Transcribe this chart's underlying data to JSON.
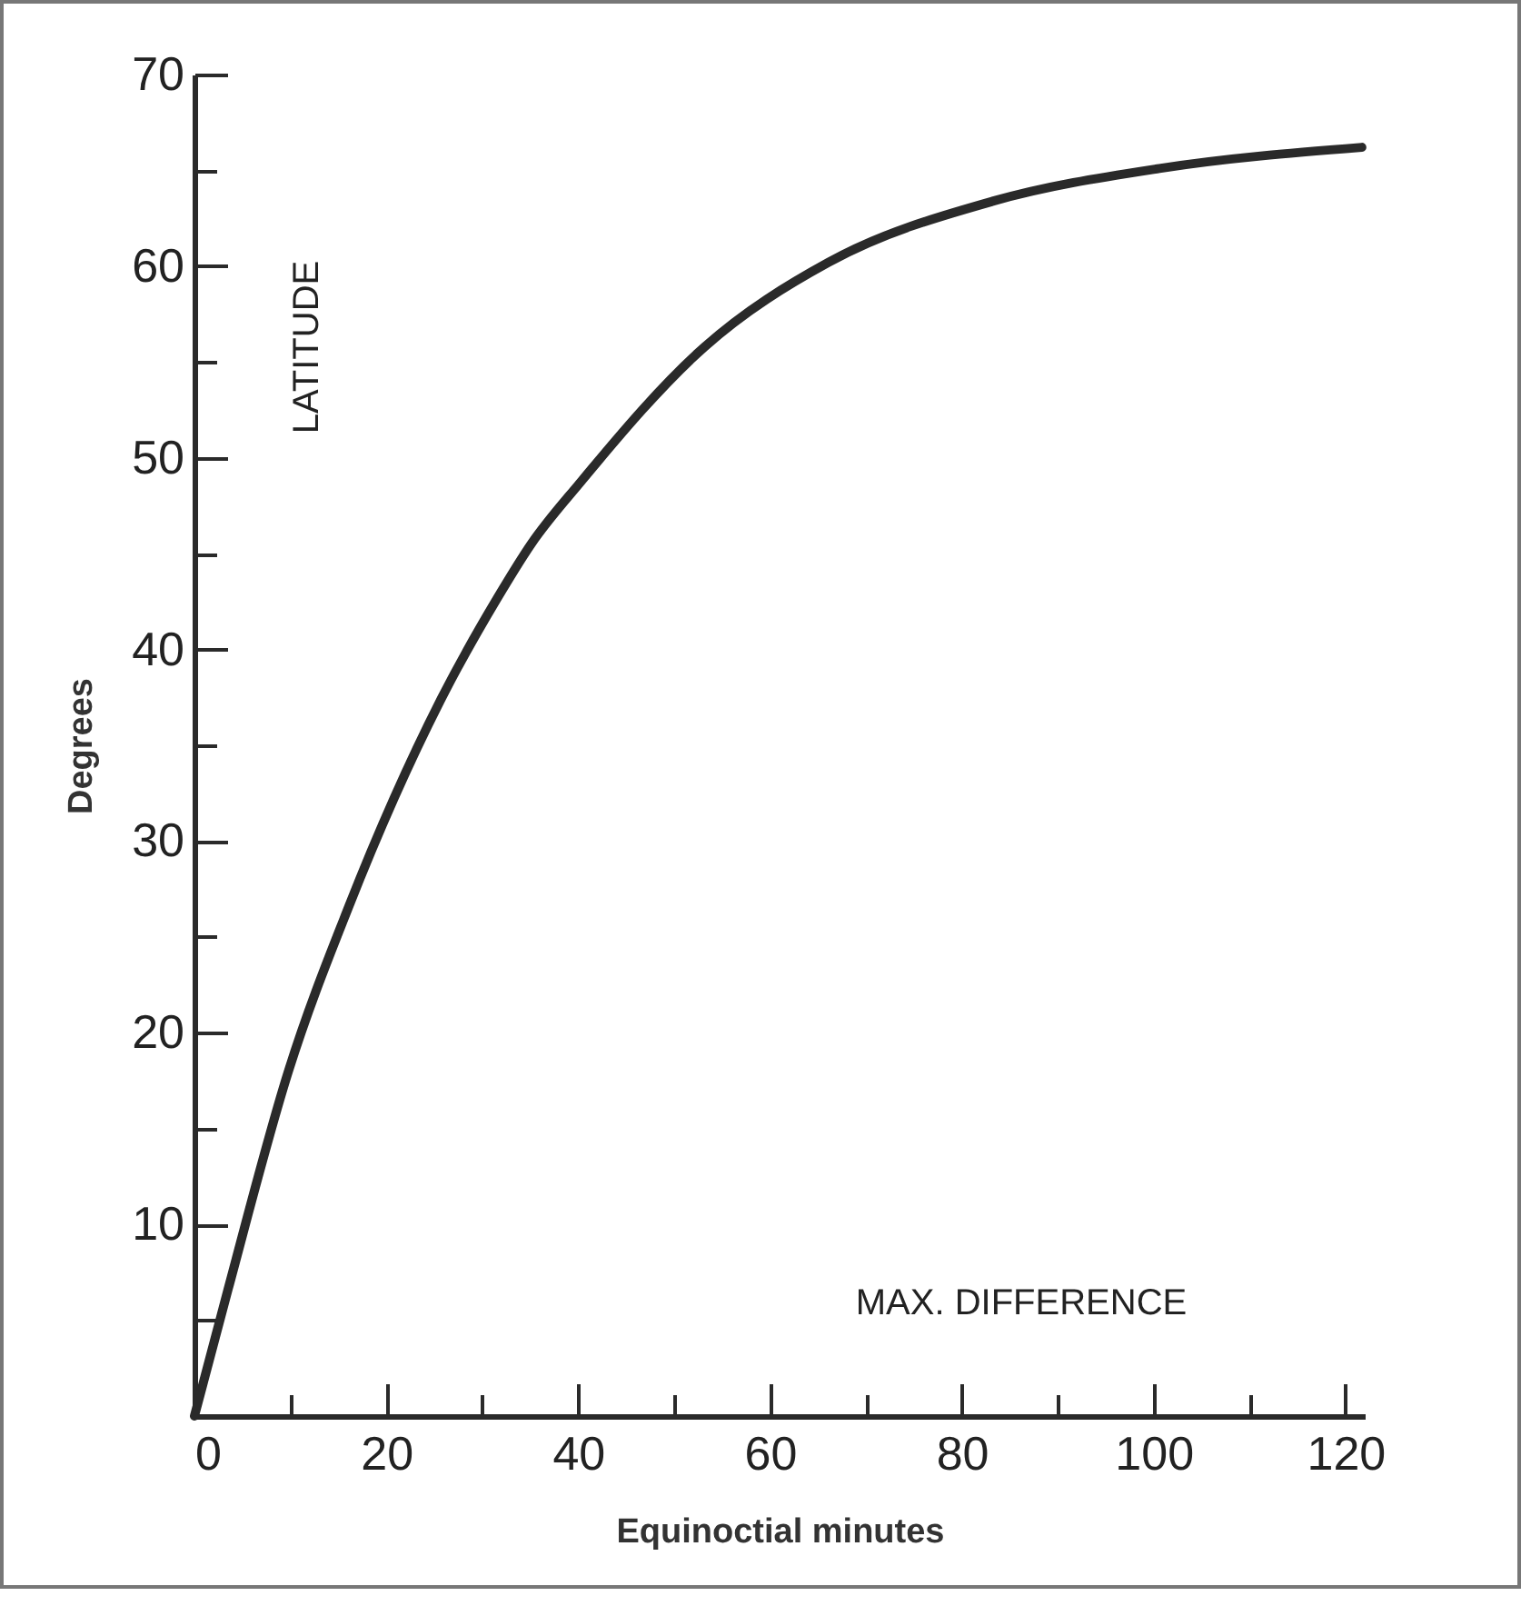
{
  "chart_data": {
    "type": "line",
    "xlabel": "Equinoctial minutes",
    "ylabel": "Degrees",
    "annotations": [
      "LATITUDE",
      "MAX. DIFFERENCE"
    ],
    "x": [
      0,
      3.5,
      9.8,
      16.1,
      25.6,
      31.6,
      35.1,
      40.2,
      53.2,
      66.1,
      83.3,
      100.6,
      121.7
    ],
    "series": [
      {
        "color": "#2a2a2a",
        "values": [
          0,
          6.6,
          18.0,
          26.6,
          37.3,
          42.7,
          45.5,
          48.7,
          55.8,
          60.2,
          63.4,
          65.1,
          66.2
        ]
      }
    ],
    "xlim": [
      0,
      122
    ],
    "ylim": [
      0,
      70
    ],
    "xticks": [
      0,
      {
        "value": 10,
        "label": null
      },
      20,
      {
        "value": 30,
        "label": null
      },
      40,
      {
        "value": 50,
        "label": null
      },
      60,
      {
        "value": 70,
        "label": null
      },
      80,
      {
        "value": 90,
        "label": null
      },
      100,
      {
        "value": 110,
        "label": null
      },
      120
    ],
    "yticks": [
      {
        "value": 5,
        "label": null
      },
      10,
      {
        "value": 15,
        "label": null
      },
      20,
      {
        "value": 25,
        "label": null
      },
      30,
      {
        "value": 35,
        "label": null
      },
      40,
      {
        "value": 45,
        "label": null
      },
      50,
      {
        "value": 55,
        "label": null
      },
      60,
      {
        "value": 65,
        "label": null
      },
      70
    ],
    "grid": false,
    "legend": false,
    "marker": "none",
    "line_style": "solid"
  }
}
